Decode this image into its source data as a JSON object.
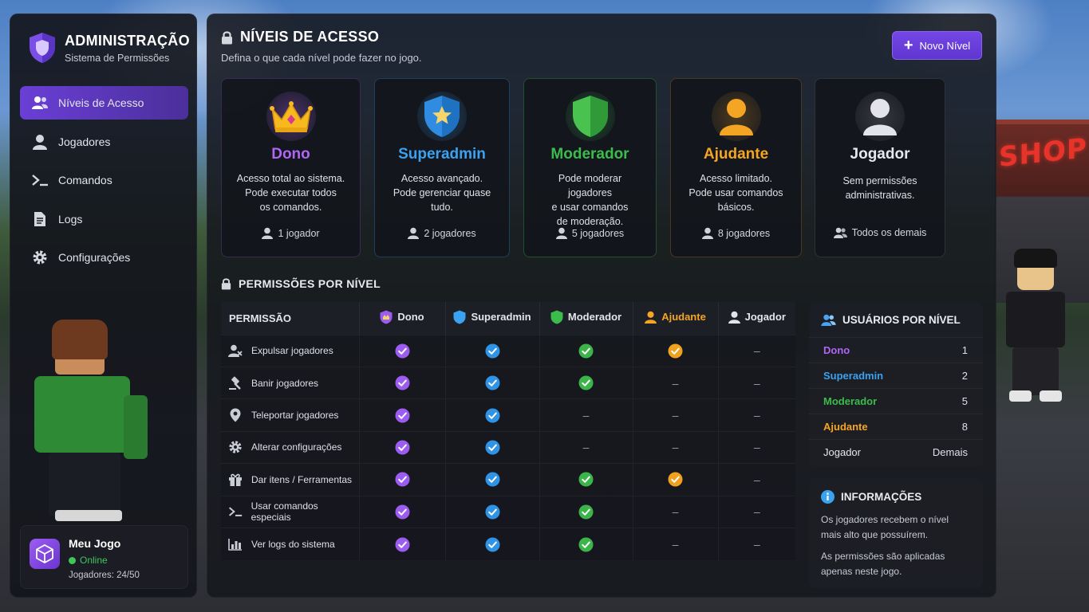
{
  "sidebar": {
    "brand_title": "ADMINISTRAÇÃO",
    "brand_subtitle": "Sistema de Permissões",
    "items": [
      {
        "label": "Níveis de Acesso",
        "icon": "users-icon"
      },
      {
        "label": "Jogadores",
        "icon": "user-icon"
      },
      {
        "label": "Comandos",
        "icon": "terminal-icon"
      },
      {
        "label": "Logs",
        "icon": "document-icon"
      },
      {
        "label": "Configurações",
        "icon": "gear-icon"
      }
    ],
    "game": {
      "name": "Meu Jogo",
      "status": "Online",
      "players": "Jogadores: 24/50"
    }
  },
  "header": {
    "title": "NÍVEIS DE ACESSO",
    "description": "Defina o que cada nível pode fazer no jogo.",
    "new_button": "Novo Nível"
  },
  "levels": [
    {
      "name": "Dono",
      "color": "#b066f5",
      "desc": [
        "Acesso total ao sistema.",
        "Pode executar todos",
        "os comandos."
      ],
      "count": "1 jogador",
      "icon": "crown-icon"
    },
    {
      "name": "Superadmin",
      "color": "#3aa2f0",
      "desc": [
        "Acesso avançado.",
        "Pode gerenciar quase",
        "tudo."
      ],
      "count": "2 jogadores",
      "icon": "star-shield-icon"
    },
    {
      "name": "Moderador",
      "color": "#3bbd4c",
      "desc": [
        "Pode moderar jogadores",
        "e usar comandos",
        "de moderação."
      ],
      "count": "5 jogadores",
      "icon": "shield-icon"
    },
    {
      "name": "Ajudante",
      "color": "#f5a524",
      "desc": [
        "Acesso limitado.",
        "Pode usar comandos",
        "básicos."
      ],
      "count": "8 jogadores",
      "icon": "user-icon"
    },
    {
      "name": "Jogador",
      "color": "#e6e8ee",
      "desc": [
        "Sem permissões",
        "administrativas."
      ],
      "count": "Todos os demais",
      "icon": "user-icon"
    }
  ],
  "permissions_section": {
    "title": "PERMISSÕES POR NÍVEL",
    "header_permission": "PERMISSÃO",
    "columns": [
      "Dono",
      "Superadmin",
      "Moderador",
      "Ajudante",
      "Jogador"
    ],
    "dash": "–",
    "rows": [
      {
        "label": "Expulsar jogadores",
        "icon": "user-kick-icon",
        "values": [
          true,
          true,
          true,
          true,
          false
        ]
      },
      {
        "label": "Banir jogadores",
        "icon": "gavel-icon",
        "values": [
          true,
          true,
          true,
          false,
          false
        ]
      },
      {
        "label": "Teleportar jogadores",
        "icon": "map-pin-icon",
        "values": [
          true,
          true,
          false,
          false,
          false
        ]
      },
      {
        "label": "Alterar configurações",
        "icon": "gear-icon",
        "values": [
          true,
          true,
          false,
          false,
          false
        ]
      },
      {
        "label": "Dar itens / Ferramentas",
        "icon": "gift-icon",
        "values": [
          true,
          true,
          true,
          true,
          false
        ]
      },
      {
        "label": "Usar comandos especiais",
        "icon": "terminal-icon",
        "values": [
          true,
          true,
          true,
          false,
          false
        ]
      },
      {
        "label": "Ver logs do sistema",
        "icon": "bar-chart-icon",
        "values": [
          true,
          true,
          true,
          false,
          false
        ]
      }
    ]
  },
  "users_by_level": {
    "title": "USUÁRIOS POR NÍVEL",
    "rows": [
      {
        "name": "Dono",
        "value": "1",
        "color": "#b066f5"
      },
      {
        "name": "Superadmin",
        "value": "2",
        "color": "#3aa2f0"
      },
      {
        "name": "Moderador",
        "value": "5",
        "color": "#3bbd4c"
      },
      {
        "name": "Ajudante",
        "value": "8",
        "color": "#f5a524"
      },
      {
        "name": "Jogador",
        "value": "Demais",
        "color": "#e6e8ee"
      }
    ]
  },
  "info": {
    "title": "INFORMAÇÕES",
    "lines": [
      "Os jogadores recebem o nível mais alto que possuírem.",
      "As permissões são aplicadas apenas neste jogo."
    ]
  },
  "scene": {
    "shop_sign": "SHOP"
  }
}
